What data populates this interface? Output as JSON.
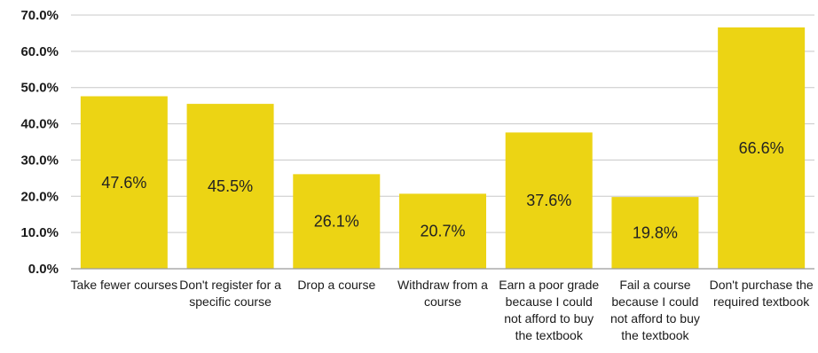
{
  "chart_data": {
    "type": "bar",
    "title": "",
    "xlabel": "",
    "ylabel": "",
    "ylim": [
      0,
      70
    ],
    "yticks": [
      0,
      10,
      20,
      30,
      40,
      50,
      60,
      70
    ],
    "ytick_labels": [
      "0.0%",
      "10.0%",
      "20.0%",
      "30.0%",
      "40.0%",
      "50.0%",
      "60.0%",
      "70.0%"
    ],
    "grid": true,
    "legend": "none",
    "bar_color": "#ecd414",
    "categories": [
      [
        "Take fewer courses"
      ],
      [
        "Don't register for a",
        "specific course"
      ],
      [
        "Drop a course"
      ],
      [
        "Withdraw from a",
        "course"
      ],
      [
        "Earn a poor grade",
        "because I could",
        "not afford to buy",
        "the textbook"
      ],
      [
        "Fail a course",
        "because I could",
        "not afford to buy",
        "the textbook"
      ],
      [
        "Don't purchase the",
        "required textbook"
      ]
    ],
    "values": [
      47.6,
      45.5,
      26.1,
      20.7,
      37.6,
      19.8,
      66.6
    ],
    "data_labels": [
      "47.6%",
      "45.5%",
      "26.1%",
      "20.7%",
      "37.6%",
      "19.8%",
      "66.6%"
    ]
  }
}
